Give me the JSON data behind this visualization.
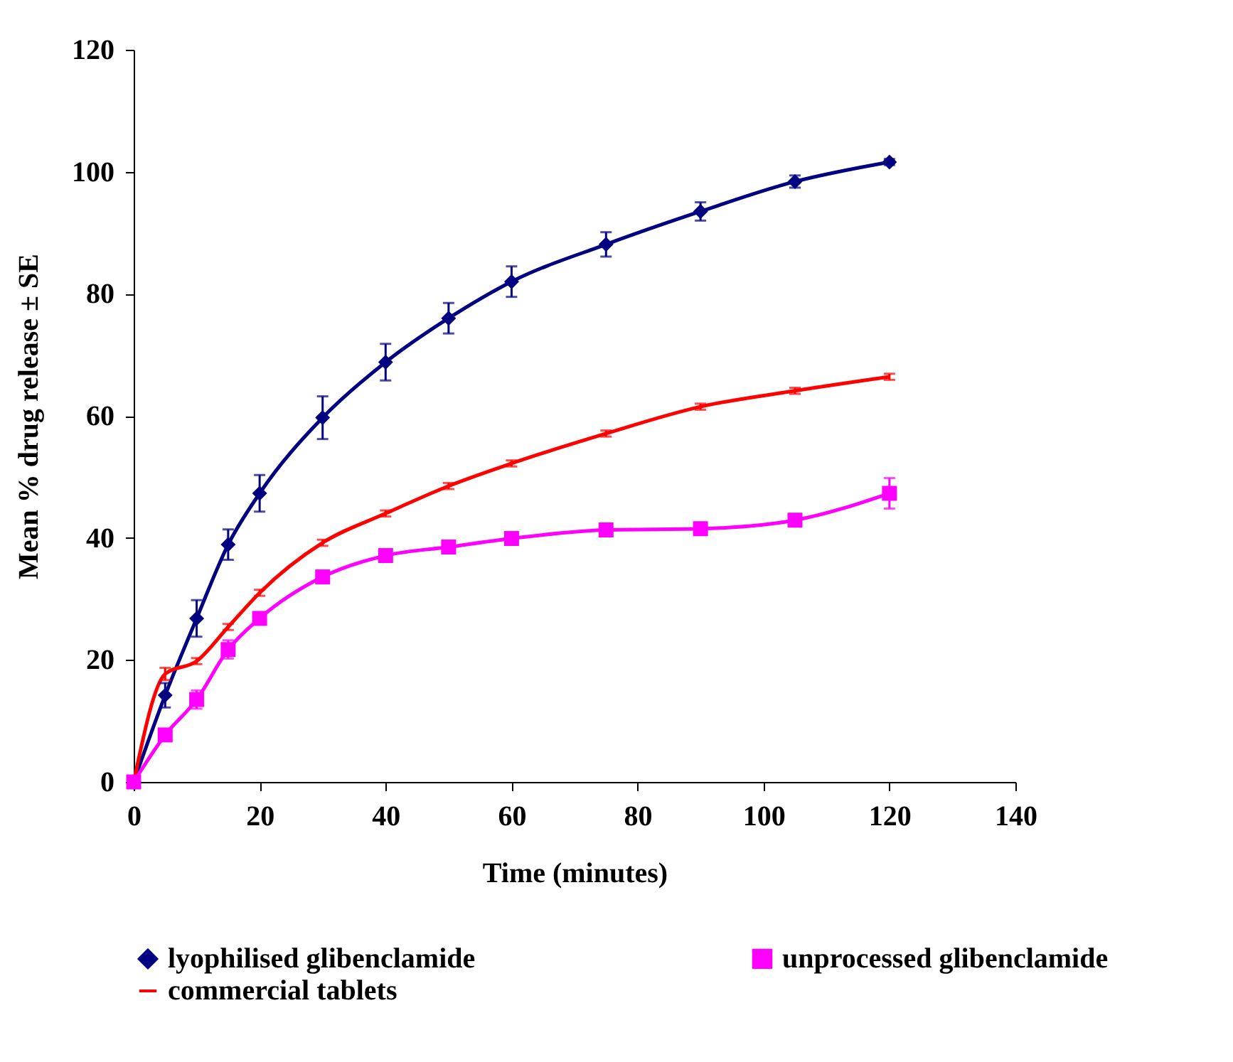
{
  "chart_data": {
    "type": "line",
    "xlabel": "Time (minutes)",
    "ylabel": "Mean % drug release ± SE",
    "x": [
      0,
      5,
      10,
      15,
      20,
      30,
      40,
      50,
      60,
      75,
      90,
      105,
      120
    ],
    "xlim": [
      0,
      140
    ],
    "xticks": [
      0,
      20,
      40,
      60,
      80,
      100,
      120,
      140
    ],
    "ylim": [
      0,
      120
    ],
    "yticks": [
      0,
      20,
      40,
      60,
      80,
      100,
      120
    ],
    "grid": false,
    "legend": "bottom",
    "series": [
      {
        "name": "lyophilised glibenclamide",
        "color": "#000080",
        "marker": "diamond",
        "values": [
          0,
          14.2,
          26.8,
          38.9,
          47.3,
          59.7,
          68.8,
          76,
          82,
          88.1,
          93.5,
          98.4,
          101.6
        ],
        "errors": [
          null,
          2,
          3,
          2.5,
          3,
          3.5,
          3,
          2.5,
          2.5,
          2,
          1.5,
          1,
          0.5
        ]
      },
      {
        "name": "unprocessed glibenclamide",
        "color": "#ff00ff",
        "marker": "square",
        "values": [
          0,
          7.7,
          13.5,
          21.7,
          26.8,
          33.6,
          37.1,
          38.5,
          39.9,
          41.3,
          41.5,
          42.9,
          47.3
        ],
        "errors": [
          null,
          0.5,
          1.5,
          1.5,
          1,
          1,
          1,
          1,
          1,
          1,
          1,
          1,
          2.5
        ]
      },
      {
        "name": "commercial tablets",
        "color": "#ff0000",
        "marker": "none",
        "values": [
          0,
          17.7,
          19.8,
          25.4,
          31,
          39.2,
          44,
          48.5,
          52.2,
          57.1,
          61.5,
          64.1,
          66.4
        ],
        "errors": [
          null,
          1,
          0.5,
          0.5,
          0.5,
          0.5,
          0.5,
          0.5,
          0.5,
          0.5,
          0.5,
          0.5,
          0.5
        ]
      }
    ]
  }
}
